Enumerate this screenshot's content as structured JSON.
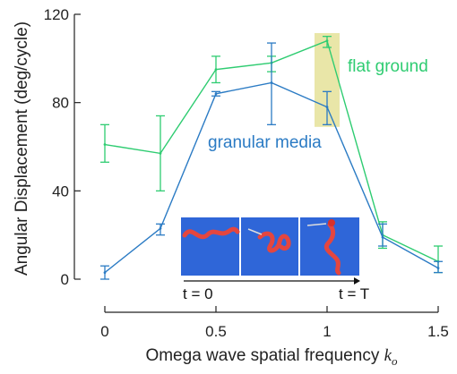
{
  "chart_data": {
    "type": "line",
    "xlabel_text": "Omega wave spatial frequency ",
    "xlabel_var": "k",
    "xlabel_sub": "o",
    "ylabel": "Angular Displacement (deg/cycle)",
    "xlim": [
      0,
      1.5
    ],
    "ylim": [
      0,
      120
    ],
    "x_ticks": [
      0,
      0.5,
      1,
      1.5
    ],
    "x_tick_labels": [
      "0",
      "0.5",
      "1",
      "1.5"
    ],
    "y_ticks": [
      0,
      40,
      80,
      120
    ],
    "y_tick_labels": [
      "0",
      "40",
      "80",
      "120"
    ],
    "x": [
      0,
      0.25,
      0.5,
      0.75,
      1.0,
      1.25,
      1.5
    ],
    "series": [
      {
        "name": "flat ground",
        "color": "#2ecc71",
        "values": [
          61,
          57,
          95,
          98,
          108,
          20,
          8
        ],
        "err_low": [
          53,
          40,
          89,
          94,
          105,
          14,
          3
        ],
        "err_high": [
          70,
          74,
          101,
          101,
          110,
          26,
          15
        ]
      },
      {
        "name": "granular media",
        "color": "#2b7bc4",
        "values": [
          3,
          23,
          84,
          89,
          78,
          19,
          5
        ],
        "err_low": [
          0,
          20,
          83,
          70,
          70,
          15,
          3
        ],
        "err_high": [
          6,
          25,
          85,
          107,
          85,
          25,
          8
        ]
      }
    ],
    "highlight": {
      "x_center": 1.0,
      "color": "#e9e6a8"
    },
    "inset": {
      "label_start": "t = 0",
      "label_end": "t = T",
      "background": "#2f66d8",
      "snake_color": "#e4463f"
    }
  }
}
